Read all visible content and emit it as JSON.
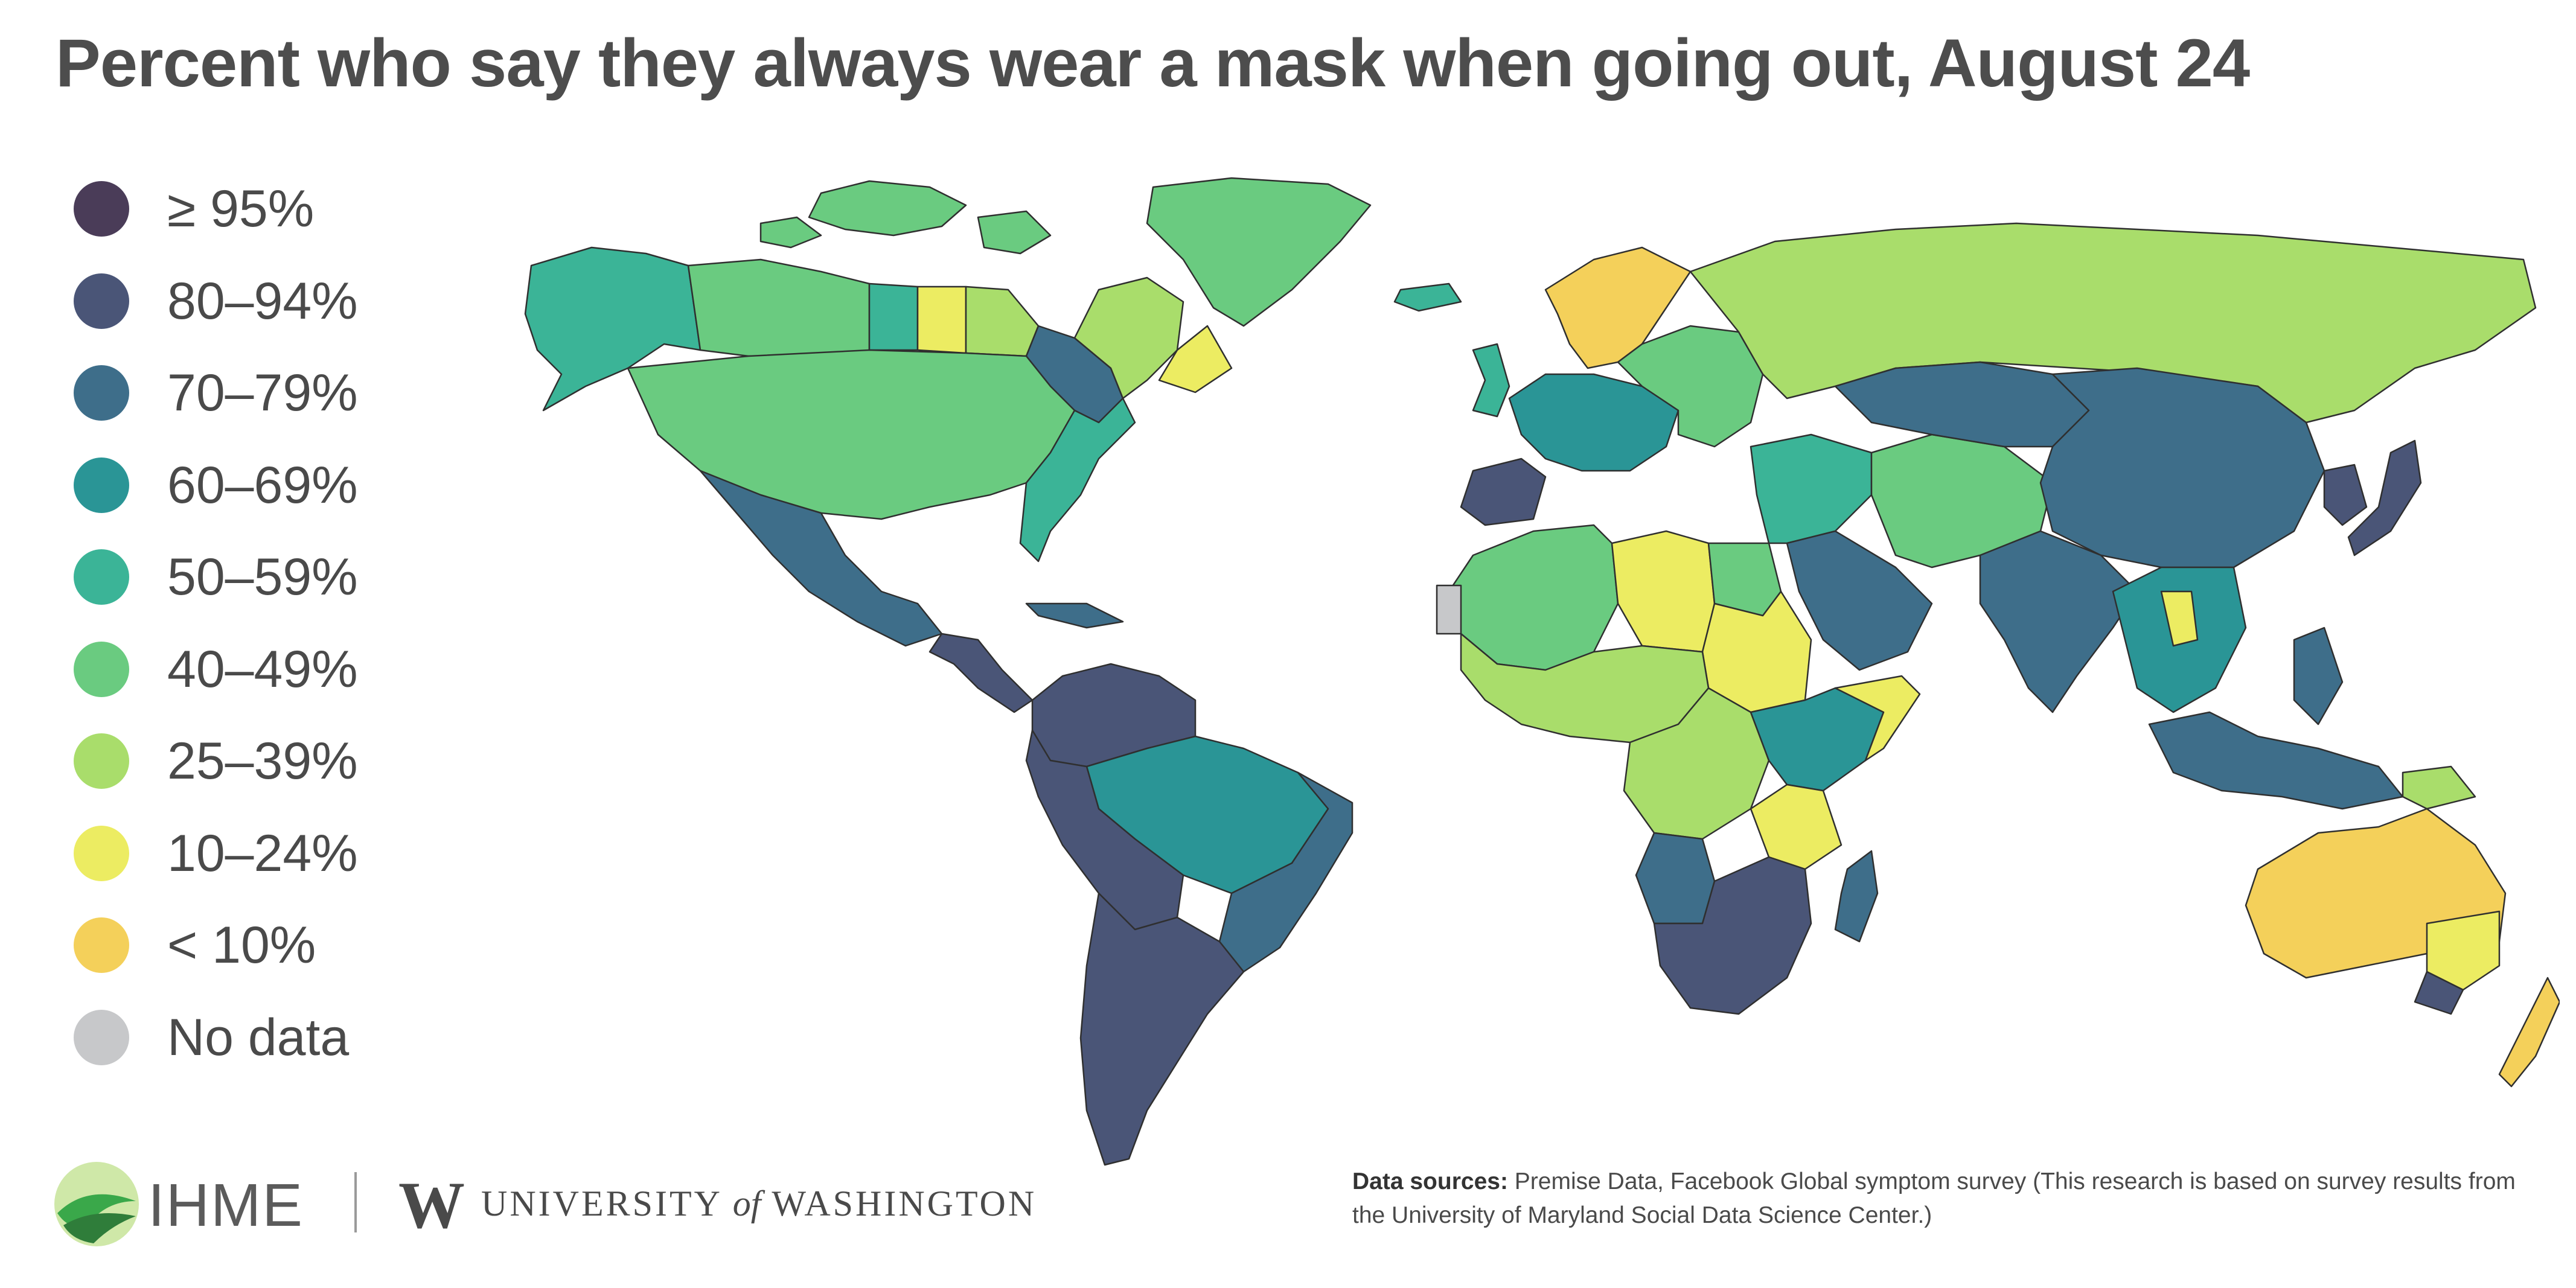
{
  "title": "Percent who say they always wear a mask when going out, August 24",
  "legend": [
    {
      "label": "≥ 95%",
      "color": "#4a3c58"
    },
    {
      "label": "80–94%",
      "color": "#4a5577"
    },
    {
      "label": "70–79%",
      "color": "#3e6e8a"
    },
    {
      "label": "60–69%",
      "color": "#2a9596"
    },
    {
      "label": "50–59%",
      "color": "#3bb497"
    },
    {
      "label": "40–49%",
      "color": "#6acb80"
    },
    {
      "label": "25–39%",
      "color": "#a9dd6b"
    },
    {
      "label": "10–24%",
      "color": "#ecec62"
    },
    {
      "label": "< 10%",
      "color": "#f4d05a"
    },
    {
      "label": "No data",
      "color": "#c7c8ca"
    }
  ],
  "footer": {
    "ihme": "IHME",
    "uw_mark": "W",
    "uw_pre": "UNIVERSITY ",
    "uw_of": "of",
    "uw_post": " WASHINGTON",
    "sources_label": "Data sources:",
    "sources_text": "Premise Data, Facebook Global symptom survey (This research is based on survey results from the University of Maryland Social Data Science Center.)"
  },
  "map_regions": [
    {
      "name": "alaska",
      "bin": "50–59%"
    },
    {
      "name": "canada-west",
      "bin": "40–49%"
    },
    {
      "name": "canada-prairie",
      "bin": "50–59%"
    },
    {
      "name": "saskatchewan",
      "bin": "10–24%"
    },
    {
      "name": "manitoba",
      "bin": "25–39%"
    },
    {
      "name": "ontario",
      "bin": "70–79%"
    },
    {
      "name": "quebec",
      "bin": "25–39%"
    },
    {
      "name": "labrador",
      "bin": "10–24%"
    },
    {
      "name": "arctic-islands",
      "bin": "40–49%"
    },
    {
      "name": "greenland",
      "bin": "40–49%"
    },
    {
      "name": "usa",
      "bin": "40–49%"
    },
    {
      "name": "usa-east",
      "bin": "50–59%"
    },
    {
      "name": "mexico",
      "bin": "70–79%"
    },
    {
      "name": "central-america",
      "bin": "80–94%"
    },
    {
      "name": "caribbean",
      "bin": "70–79%"
    },
    {
      "name": "colombia-venezuela",
      "bin": "80–94%"
    },
    {
      "name": "brazil",
      "bin": "60–69%"
    },
    {
      "name": "brazil-east",
      "bin": "70–79%"
    },
    {
      "name": "peru-bolivia",
      "bin": "80–94%"
    },
    {
      "name": "argentina-chile",
      "bin": "80–94%"
    },
    {
      "name": "iceland",
      "bin": "50–59%"
    },
    {
      "name": "uk",
      "bin": "50–59%"
    },
    {
      "name": "scandinavia",
      "bin": "< 10%"
    },
    {
      "name": "western-europe",
      "bin": "60–69%"
    },
    {
      "name": "iberia",
      "bin": "80–94%"
    },
    {
      "name": "eastern-europe",
      "bin": "40–49%"
    },
    {
      "name": "russia",
      "bin": "25–39%"
    },
    {
      "name": "north-africa",
      "bin": "40–49%"
    },
    {
      "name": "libya",
      "bin": "10–24%"
    },
    {
      "name": "west-africa",
      "bin": "25–39%"
    },
    {
      "name": "western-sahara",
      "bin": "No data"
    },
    {
      "name": "egypt",
      "bin": "40–49%"
    },
    {
      "name": "sudan",
      "bin": "10–24%"
    },
    {
      "name": "central-africa",
      "bin": "25–39%"
    },
    {
      "name": "east-africa",
      "bin": "60–69%"
    },
    {
      "name": "somalia",
      "bin": "10–24%"
    },
    {
      "name": "tanzania",
      "bin": "10–24%"
    },
    {
      "name": "angola",
      "bin": "70–79%"
    },
    {
      "name": "southern-africa",
      "bin": "80–94%"
    },
    {
      "name": "madagascar",
      "bin": "70–79%"
    },
    {
      "name": "arabia",
      "bin": "70–79%"
    },
    {
      "name": "middle-east",
      "bin": "50–59%"
    },
    {
      "name": "iran-central-asia",
      "bin": "40–49%"
    },
    {
      "name": "kazakhstan",
      "bin": "70–79%"
    },
    {
      "name": "china",
      "bin": "70–79%"
    },
    {
      "name": "india",
      "bin": "70–79%"
    },
    {
      "name": "southeast-asia",
      "bin": "60–69%"
    },
    {
      "name": "laos",
      "bin": "10–24%"
    },
    {
      "name": "japan",
      "bin": "80–94%"
    },
    {
      "name": "korea",
      "bin": "80–94%"
    },
    {
      "name": "philippines",
      "bin": "70–79%"
    },
    {
      "name": "indonesia",
      "bin": "70–79%"
    },
    {
      "name": "papua-new-guinea",
      "bin": "25–39%"
    },
    {
      "name": "australia",
      "bin": "< 10%"
    },
    {
      "name": "victoria",
      "bin": "80–94%"
    },
    {
      "name": "nsw",
      "bin": "10–24%"
    },
    {
      "name": "new-zealand",
      "bin": "< 10%"
    }
  ]
}
